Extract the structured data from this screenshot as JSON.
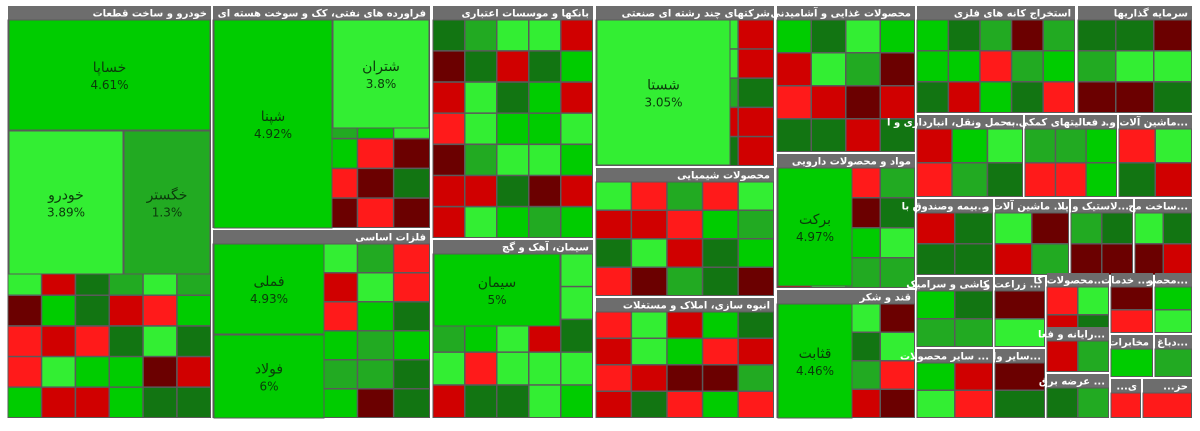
{
  "chart_data": {
    "type": "treemap",
    "colors": {
      "strong_up": "#33ee33",
      "up": "#00cc00",
      "mild_up": "#22aa22",
      "dark_up": "#127512",
      "down": "#ff1a1a",
      "mild_down": "#d00000",
      "dark_down": "#6b0000",
      "header": "#6d6d6d"
    },
    "sectors": [
      {
        "name": "خودرو و ساخت قطعات",
        "tiles": [
          {
            "symbol": "خساپا",
            "value": "4.61%"
          },
          {
            "symbol": "خودرو",
            "value": "3.89%"
          },
          {
            "symbol": "خگستر",
            "value": "1.3%"
          }
        ]
      },
      {
        "name": "فراورده های نفتی، کک و سوخت هسته ای",
        "tiles": [
          {
            "symbol": "شپنا",
            "value": "4.92%"
          },
          {
            "symbol": "شتران",
            "value": "3.8%"
          }
        ]
      },
      {
        "name": "بانکها و موسسات اعتباری",
        "tiles": []
      },
      {
        "name": "شرکتهای چند رشته ای صنعتی",
        "tiles": [
          {
            "symbol": "شستا",
            "value": "3.05%"
          }
        ]
      },
      {
        "name": "محصولات غذایی و آشامیدنی",
        "tiles": []
      },
      {
        "name": "استخراج کانه های فلزی",
        "tiles": []
      },
      {
        "name": "سرمایه گذاریها",
        "tiles": []
      },
      {
        "name": "فلزات اساسی",
        "tiles": [
          {
            "symbol": "فملی",
            "value": "4.93%"
          },
          {
            "symbol": "فولاد",
            "value": "6%"
          }
        ]
      },
      {
        "name": "سیمان، آهک و گچ",
        "tiles": [
          {
            "symbol": "سیمان",
            "value": "5%"
          }
        ]
      },
      {
        "name": "محصولات شیمیایی",
        "tiles": []
      },
      {
        "name": "انبوه سازی، املاک و مستغلات",
        "tiles": []
      },
      {
        "name": "مواد و محصولات دارویی",
        "tiles": [
          {
            "symbol": "برکت",
            "value": "4.97%"
          }
        ]
      },
      {
        "name": "قند و شکر",
        "tiles": [
          {
            "symbol": "قثابت",
            "value": "4.46%"
          }
        ]
      },
      {
        "name": "حمل ونقل، انبارداری و ا...",
        "tiles": []
      },
      {
        "name": "فعالیتهای کمکی به ...",
        "tiles": []
      },
      {
        "name": "ماشین آلات و د...",
        "tiles": []
      },
      {
        "name": "بیمه وصندوق با...",
        "tiles": []
      },
      {
        "name": "ماشین آلات و ...",
        "tiles": []
      },
      {
        "name": "لاستیک و پلا...",
        "tiles": []
      },
      {
        "name": "ساخت مح...",
        "tiles": []
      },
      {
        "name": "کاشی و سرامیک",
        "tiles": []
      },
      {
        "name": "زراعت و ...",
        "tiles": []
      },
      {
        "name": "محصولات کا...",
        "tiles": []
      },
      {
        "name": "خدمات ...",
        "tiles": []
      },
      {
        "name": "محصو...",
        "tiles": []
      },
      {
        "name": "رایانه و فعا...",
        "tiles": []
      },
      {
        "name": "سایر محصولات ...",
        "tiles": []
      },
      {
        "name": "سایر وا...",
        "tiles": []
      },
      {
        "name": "مخابرات",
        "tiles": []
      },
      {
        "name": "دباغ...",
        "tiles": []
      },
      {
        "name": "عرضه برق ...",
        "tiles": []
      },
      {
        "name": "...ی",
        "tiles": []
      },
      {
        "name": "...حز",
        "tiles": []
      }
    ]
  }
}
